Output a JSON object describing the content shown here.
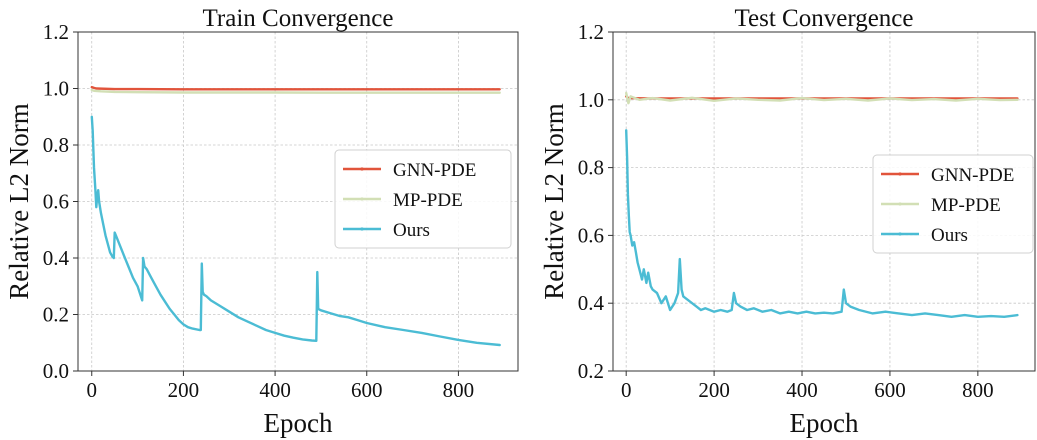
{
  "chart_data": [
    {
      "type": "line",
      "title": "Train Convergence",
      "xlabel": "Epoch",
      "ylabel": "Relative L2 Norm",
      "xlim": [
        -30,
        930
      ],
      "ylim": [
        0.0,
        1.2
      ],
      "xticks": [
        0,
        200,
        400,
        600,
        800
      ],
      "yticks": [
        0.0,
        0.2,
        0.4,
        0.6,
        0.8,
        1.0,
        1.2
      ],
      "ytick_labels": [
        "0.0",
        "0.2",
        "0.4",
        "0.6",
        "0.8",
        "1.0",
        "1.2"
      ],
      "grid": true,
      "legend_position": "center-right",
      "series": [
        {
          "name": "GNN-PDE",
          "color": "#e1543b",
          "x": [
            0,
            5,
            10,
            50,
            100,
            200,
            300,
            400,
            500,
            600,
            700,
            800,
            890
          ],
          "y": [
            1.005,
            1.002,
            1.0,
            0.998,
            0.998,
            0.997,
            0.997,
            0.997,
            0.997,
            0.997,
            0.997,
            0.997,
            0.997
          ]
        },
        {
          "name": "MP-PDE",
          "color": "#d2dfb5",
          "x": [
            0,
            5,
            20,
            50,
            100,
            200,
            300,
            400,
            500,
            600,
            700,
            800,
            890
          ],
          "y": [
            0.995,
            0.992,
            0.99,
            0.988,
            0.987,
            0.986,
            0.986,
            0.986,
            0.985,
            0.985,
            0.985,
            0.985,
            0.985
          ]
        },
        {
          "name": "Ours",
          "color": "#4bbcd4",
          "x": [
            0,
            2,
            5,
            8,
            10,
            12,
            14,
            16,
            20,
            25,
            30,
            35,
            40,
            45,
            48,
            50,
            55,
            60,
            70,
            80,
            90,
            100,
            108,
            110,
            112,
            115,
            120,
            130,
            140,
            150,
            160,
            170,
            180,
            190,
            200,
            210,
            220,
            235,
            238,
            240,
            242,
            245,
            250,
            260,
            280,
            300,
            320,
            340,
            360,
            380,
            400,
            420,
            440,
            460,
            480,
            490,
            492,
            494,
            500,
            520,
            540,
            560,
            580,
            600,
            640,
            680,
            720,
            760,
            800,
            840,
            890
          ],
          "y": [
            0.9,
            0.85,
            0.72,
            0.64,
            0.58,
            0.62,
            0.64,
            0.6,
            0.56,
            0.52,
            0.48,
            0.45,
            0.42,
            0.405,
            0.4,
            0.49,
            0.47,
            0.45,
            0.41,
            0.37,
            0.33,
            0.3,
            0.26,
            0.25,
            0.4,
            0.37,
            0.36,
            0.33,
            0.3,
            0.27,
            0.245,
            0.22,
            0.2,
            0.18,
            0.165,
            0.155,
            0.15,
            0.145,
            0.145,
            0.38,
            0.28,
            0.27,
            0.265,
            0.25,
            0.23,
            0.21,
            0.19,
            0.175,
            0.16,
            0.145,
            0.135,
            0.125,
            0.118,
            0.112,
            0.108,
            0.107,
            0.35,
            0.22,
            0.215,
            0.205,
            0.195,
            0.19,
            0.18,
            0.17,
            0.155,
            0.145,
            0.135,
            0.122,
            0.11,
            0.1,
            0.092
          ]
        }
      ]
    },
    {
      "type": "line",
      "title": "Test Convergence",
      "xlabel": "Epoch",
      "ylabel": "Relative L2 Norm",
      "xlim": [
        -30,
        930
      ],
      "ylim": [
        0.2,
        1.2
      ],
      "xticks": [
        0,
        200,
        400,
        600,
        800
      ],
      "yticks": [
        0.2,
        0.4,
        0.6,
        0.8,
        1.0,
        1.2
      ],
      "ytick_labels": [
        "0.2",
        "0.4",
        "0.6",
        "0.8",
        "1.0",
        "1.2"
      ],
      "grid": true,
      "legend_position": "center-right",
      "series": [
        {
          "name": "GNN-PDE",
          "color": "#e1543b",
          "x": [
            0,
            5,
            10,
            50,
            100,
            200,
            300,
            400,
            500,
            600,
            700,
            800,
            890
          ],
          "y": [
            1.01,
            1.005,
            1.005,
            1.004,
            1.004,
            1.004,
            1.004,
            1.004,
            1.004,
            1.004,
            1.004,
            1.004,
            1.004
          ]
        },
        {
          "name": "MP-PDE",
          "color": "#d2dfb5",
          "x": [
            0,
            5,
            10,
            30,
            60,
            100,
            150,
            200,
            250,
            300,
            350,
            400,
            450,
            500,
            550,
            600,
            650,
            700,
            750,
            800,
            850,
            890
          ],
          "y": [
            1.02,
            0.99,
            1.01,
            1.0,
            1.005,
            0.998,
            1.006,
            0.997,
            1.004,
            1.0,
            0.998,
            1.005,
            0.999,
            1.003,
            0.998,
            1.004,
            0.999,
            1.002,
            0.998,
            1.003,
            0.999,
            1.0
          ]
        },
        {
          "name": "Ours",
          "color": "#4bbcd4",
          "x": [
            0,
            2,
            4,
            6,
            8,
            10,
            14,
            18,
            22,
            26,
            30,
            36,
            40,
            46,
            50,
            56,
            60,
            70,
            80,
            90,
            100,
            110,
            118,
            122,
            126,
            130,
            140,
            150,
            160,
            170,
            180,
            190,
            200,
            215,
            230,
            240,
            245,
            250,
            260,
            275,
            290,
            310,
            330,
            350,
            370,
            390,
            410,
            430,
            450,
            470,
            490,
            495,
            500,
            510,
            530,
            560,
            590,
            620,
            650,
            680,
            710,
            740,
            770,
            800,
            830,
            860,
            890
          ],
          "y": [
            0.91,
            0.83,
            0.72,
            0.66,
            0.61,
            0.6,
            0.57,
            0.58,
            0.55,
            0.52,
            0.5,
            0.47,
            0.5,
            0.46,
            0.49,
            0.45,
            0.44,
            0.43,
            0.4,
            0.42,
            0.38,
            0.4,
            0.43,
            0.53,
            0.44,
            0.42,
            0.41,
            0.4,
            0.39,
            0.38,
            0.385,
            0.38,
            0.375,
            0.38,
            0.375,
            0.38,
            0.43,
            0.4,
            0.39,
            0.38,
            0.385,
            0.375,
            0.38,
            0.37,
            0.375,
            0.37,
            0.375,
            0.37,
            0.372,
            0.37,
            0.375,
            0.44,
            0.4,
            0.39,
            0.38,
            0.37,
            0.375,
            0.37,
            0.365,
            0.37,
            0.365,
            0.36,
            0.365,
            0.36,
            0.362,
            0.36,
            0.365
          ]
        }
      ]
    }
  ]
}
